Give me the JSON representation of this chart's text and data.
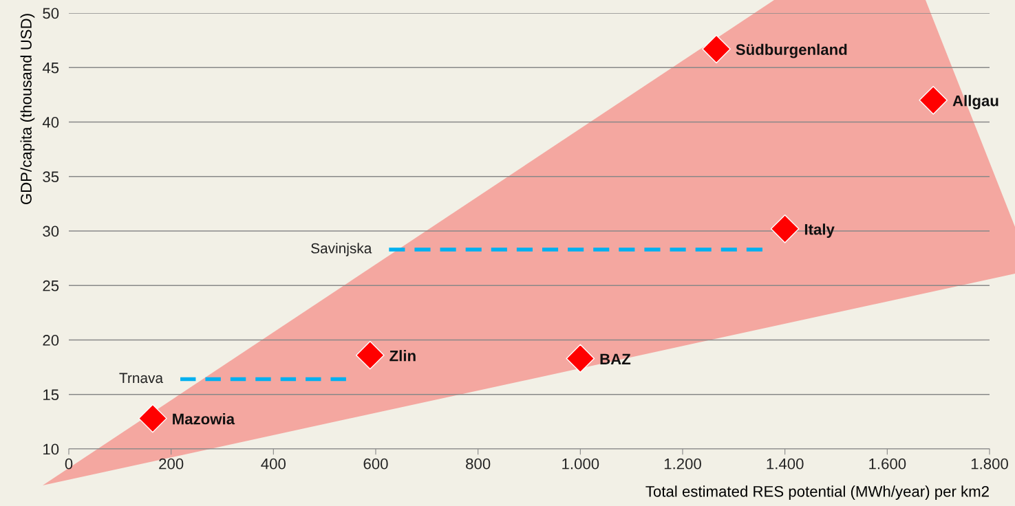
{
  "chart_data": {
    "type": "scatter",
    "xlabel": "Total estimated RES potential (MWh/year) per km2",
    "ylabel": "GDP/capita (thousand USD)",
    "xlim": [
      0,
      1800
    ],
    "ylim": [
      10,
      50
    ],
    "xticks": [
      0,
      200,
      400,
      600,
      800,
      {
        "value": 1000,
        "label": "1.000"
      },
      {
        "value": 1200,
        "label": "1.200"
      },
      {
        "value": 1400,
        "label": "1.400"
      },
      {
        "value": 1600,
        "label": "1.600"
      },
      {
        "value": 1800,
        "label": "1.800"
      }
    ],
    "yticks": [
      10,
      15,
      20,
      25,
      30,
      35,
      40,
      45,
      50
    ],
    "grid": "y",
    "legend": false,
    "series": [
      {
        "type": "line",
        "name": "Trnava",
        "color": "#00b0f0",
        "line_style": "dashed",
        "x": [
          218,
          542
        ],
        "values": [
          16.4,
          16.4
        ]
      },
      {
        "type": "line",
        "name": "Savinjska",
        "color": "#00b0f0",
        "line_style": "dashed",
        "x": [
          626,
          1356
        ],
        "values": [
          28.3,
          28.3
        ]
      },
      {
        "type": "scatter",
        "marker": "diamond",
        "color": "#ff0000",
        "x": [
          164,
          589,
          1000,
          1266,
          1400,
          1690
        ],
        "values": [
          12.8,
          18.6,
          18.3,
          46.7,
          30.2,
          42.0
        ]
      }
    ],
    "annotations": [
      {
        "text": "Mazowia",
        "x": 164,
        "y": 12.8
      },
      {
        "text": "Zlin",
        "x": 589,
        "y": 18.6
      },
      {
        "text": "BAZ",
        "x": 1000,
        "y": 18.3
      },
      {
        "text": "Südburgenland",
        "x": 1266,
        "y": 46.7
      },
      {
        "text": "Italy",
        "x": 1400,
        "y": 30.2
      },
      {
        "text": "Allgau",
        "x": 1690,
        "y": 42.0
      }
    ]
  }
}
